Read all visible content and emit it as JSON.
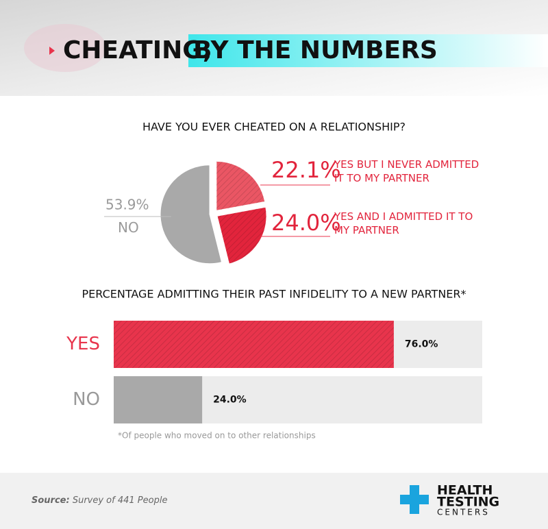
{
  "header": {
    "title_lead": "CHEATING,",
    "title_highlight": "BY THE NUMBERS"
  },
  "chart_data": [
    {
      "type": "pie",
      "title": "HAVE YOU EVER CHEATED ON A RELATIONSHIP?",
      "categories": [
        "YES BUT I NEVER ADMITTED IT TO MY PARTNER",
        "YES AND I ADMITTED IT TO MY PARTNER",
        "NO"
      ],
      "values": [
        22.1,
        24.0,
        53.9
      ],
      "value_labels": [
        "22.1%",
        "24.0%",
        "53.9%"
      ],
      "colors": [
        "#ea5664",
        "#e2243c",
        "#a9a9a9"
      ]
    },
    {
      "type": "hbar",
      "title": "PERCENTAGE ADMITTING THEIR PAST INFIDELITY TO A NEW PARTNER*",
      "categories": [
        "YES",
        "NO"
      ],
      "values": [
        76.0,
        24.0
      ],
      "value_labels": [
        "76.0%",
        "24.0%"
      ],
      "colors": [
        "#e8344c",
        "#a9a9a9"
      ],
      "xlim": [
        0,
        100
      ],
      "footnote": "*Of people who moved on to other relationships"
    }
  ],
  "footer": {
    "source_label": "Source:",
    "source_text": "Survey of 441 People",
    "logo": [
      "HEALTH",
      "TESTING",
      "CENTERS"
    ]
  }
}
